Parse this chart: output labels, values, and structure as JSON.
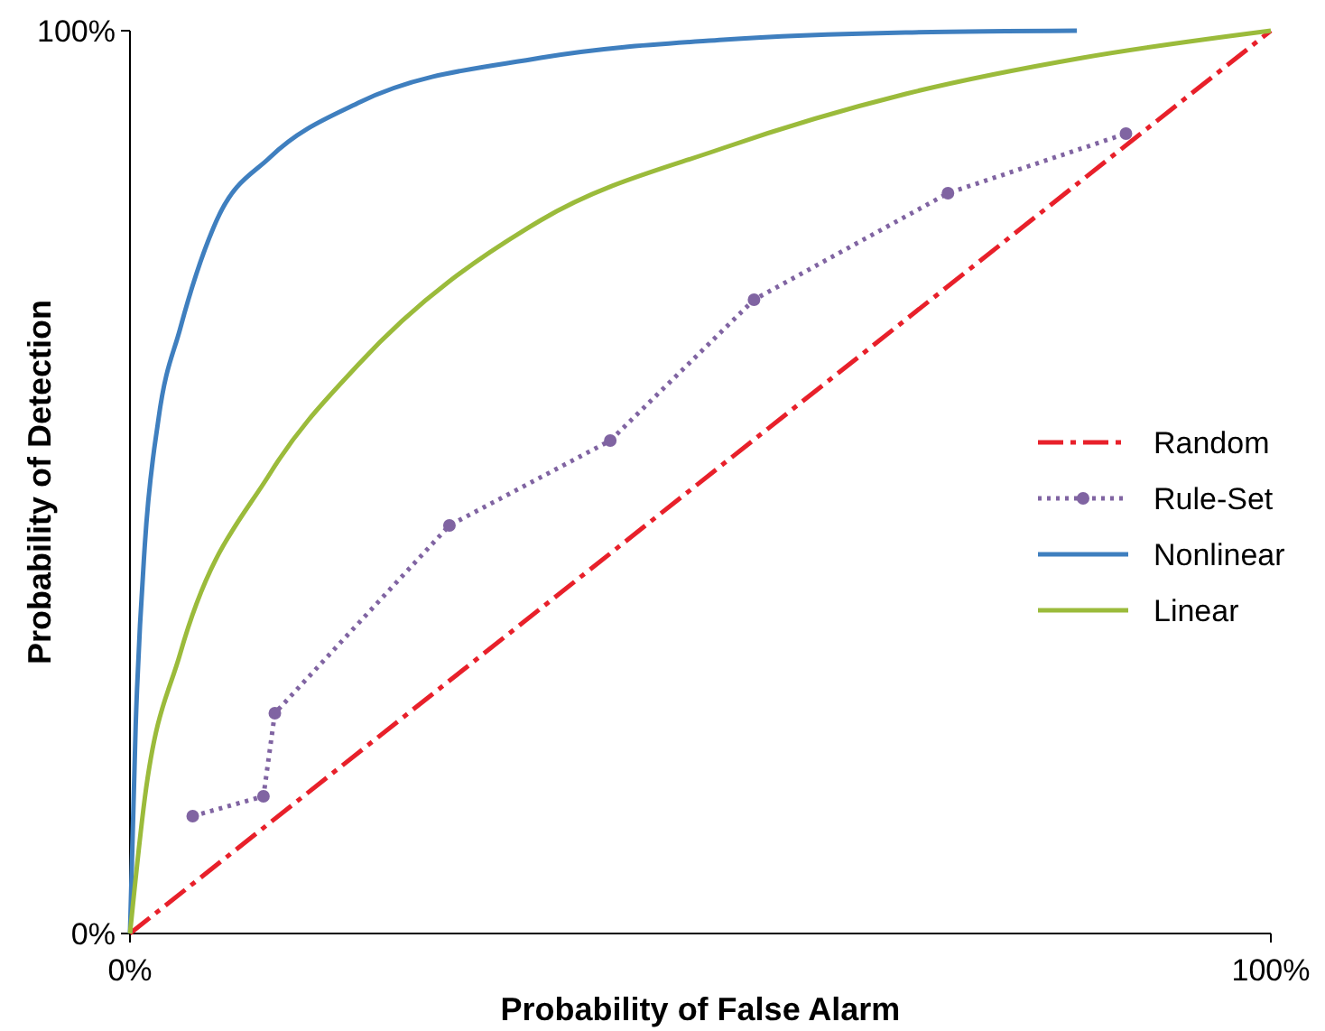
{
  "chart_data": {
    "type": "line",
    "xlabel": "Probability of False Alarm",
    "ylabel": "Probability of Detection",
    "xlim": [
      0,
      100
    ],
    "ylim": [
      0,
      100
    ],
    "xticks": [
      {
        "value": 0,
        "label": "0%"
      },
      {
        "value": 100,
        "label": "100%"
      }
    ],
    "yticks": [
      {
        "value": 0,
        "label": "0%"
      },
      {
        "value": 100,
        "label": "100%"
      }
    ],
    "legend": "right",
    "series": [
      {
        "name": "Random",
        "color": "#e8202a",
        "line_style": "dashed",
        "x": [
          0,
          100
        ],
        "values": [
          0,
          100
        ]
      },
      {
        "name": "Rule-Set",
        "color": "#8064a2",
        "line_style": "dotted",
        "marker": "circle",
        "x": [
          5.5,
          11.7,
          12.7,
          28.0,
          42.1,
          54.7,
          71.7,
          87.3
        ],
        "values": [
          13,
          15.2,
          24.4,
          45.2,
          54.6,
          70.2,
          82,
          88.6
        ]
      },
      {
        "name": "Nonlinear",
        "color": "#3f7fbf",
        "line_style": "solid",
        "x": [
          0,
          0.5,
          1.3,
          2.5,
          4.4,
          7.6,
          12.3,
          20,
          36,
          52,
          68,
          83
        ],
        "values": [
          0,
          23,
          43,
          57,
          67,
          79,
          86,
          92,
          97,
          99,
          99.8,
          100
        ]
      },
      {
        "name": "Linear",
        "color": "#9bbb3b",
        "line_style": "solid",
        "x": [
          0,
          1.3,
          4.4,
          12.3,
          20,
          36,
          52,
          68,
          83.5,
          100
        ],
        "values": [
          0,
          15,
          31,
          51,
          63,
          79,
          87,
          93,
          97,
          100
        ]
      }
    ]
  }
}
